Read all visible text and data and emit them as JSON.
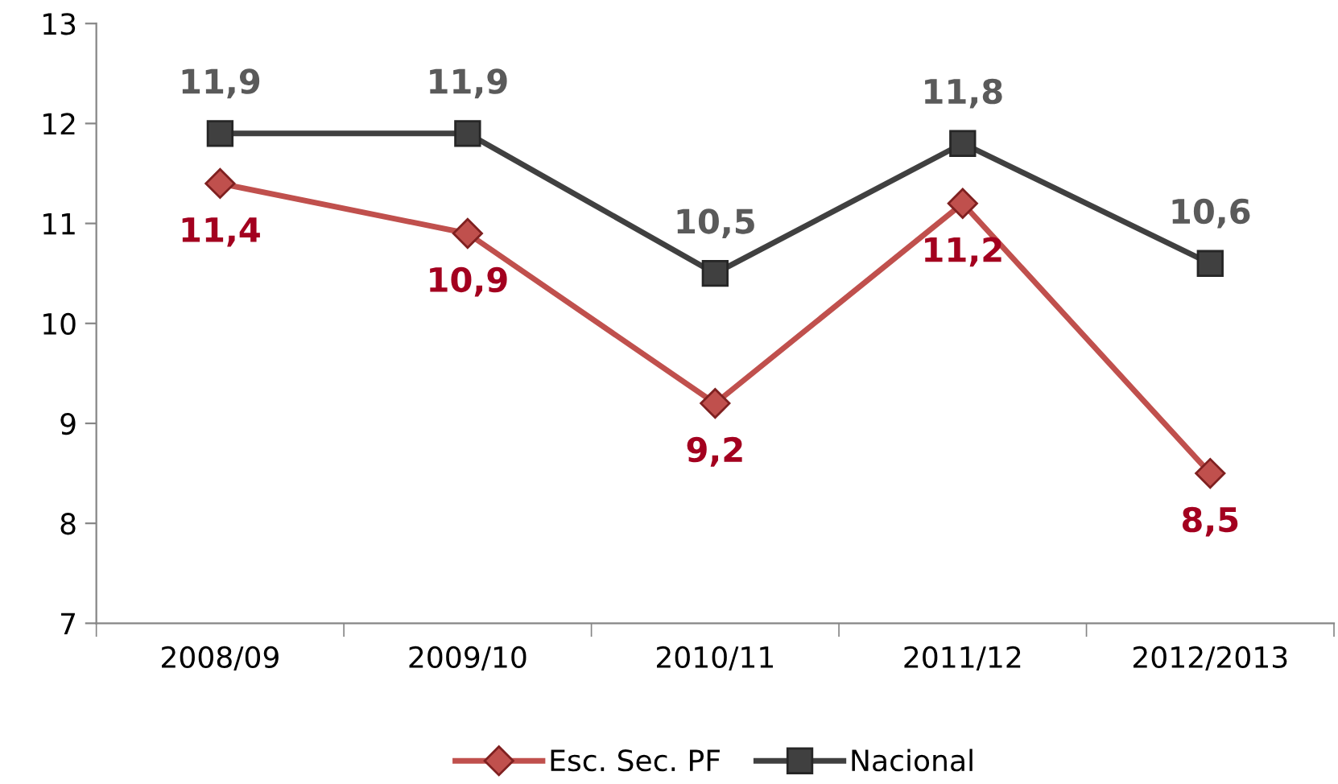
{
  "chart_data": {
    "type": "line",
    "categories": [
      "2008/09",
      "2009/10",
      "2010/11",
      "2011/12",
      "2012/2013"
    ],
    "series": [
      {
        "name": "Esc. Sec. PF",
        "color": "#c0504d",
        "marker": "diamond",
        "values": [
          11.4,
          10.9,
          9.2,
          11.2,
          8.5
        ],
        "value_labels": [
          "11,4",
          "10,9",
          "9,2",
          "11,2",
          "8,5"
        ]
      },
      {
        "name": "Nacional",
        "color": "#404040",
        "marker": "square",
        "values": [
          11.9,
          11.9,
          10.5,
          11.8,
          10.6
        ],
        "value_labels": [
          "11,9",
          "11,9",
          "10,5",
          "11,8",
          "10,6"
        ]
      }
    ],
    "ylim": [
      7,
      13
    ],
    "yticks": [
      7,
      8,
      9,
      10,
      11,
      12,
      13
    ],
    "grid": false,
    "legend": "bottom",
    "line_style": "solid"
  }
}
